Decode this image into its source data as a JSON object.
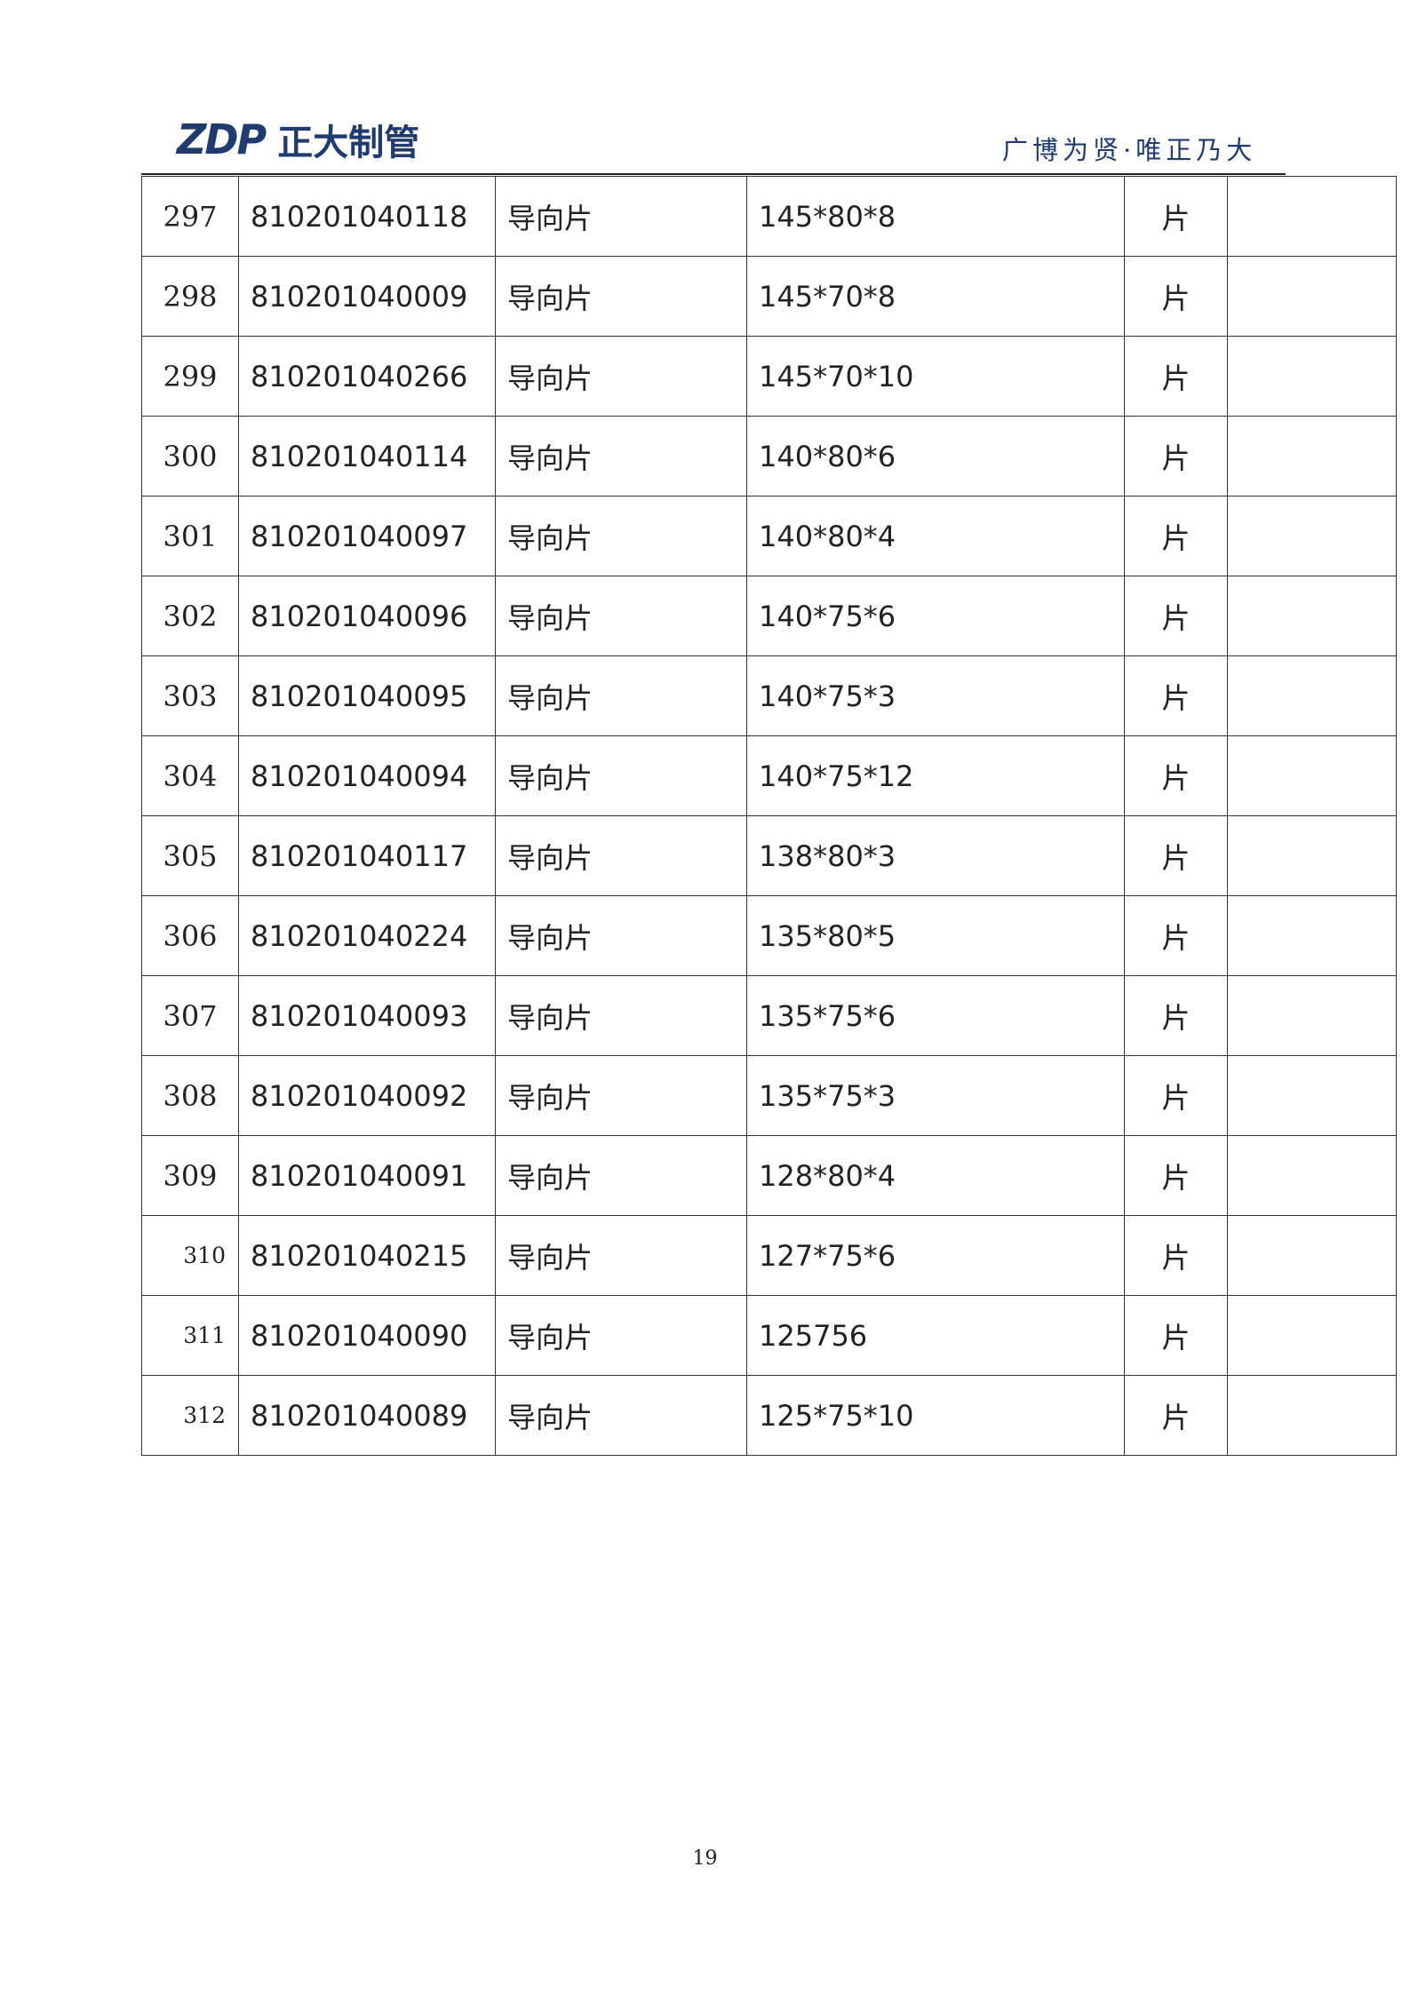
{
  "header": {
    "logo_mark": "ZDP",
    "logo_text": "正大制管",
    "slogan": "广博为贤·唯正乃大"
  },
  "table": {
    "rows": [
      [
        "297",
        "810201040118",
        "导向片",
        "145*80*8",
        "片"
      ],
      [
        "298",
        "810201040009",
        "导向片",
        "145*70*8",
        "片"
      ],
      [
        "299",
        "810201040266",
        "导向片",
        "145*70*10",
        "片"
      ],
      [
        "300",
        "810201040114",
        "导向片",
        "140*80*6",
        "片"
      ],
      [
        "301",
        "810201040097",
        "导向片",
        "140*80*4",
        "片"
      ],
      [
        "302",
        "810201040096",
        "导向片",
        "140*75*6",
        "片"
      ],
      [
        "303",
        "810201040095",
        "导向片",
        "140*75*3",
        "片"
      ],
      [
        "304",
        "810201040094",
        "导向片",
        "140*75*12",
        "片"
      ],
      [
        "305",
        "810201040117",
        "导向片",
        "138*80*3",
        "片"
      ],
      [
        "306",
        "810201040224",
        "导向片",
        "135*80*5",
        "片"
      ],
      [
        "307",
        "810201040093",
        "导向片",
        "135*75*6",
        "片"
      ],
      [
        "308",
        "810201040092",
        "导向片",
        "135*75*3",
        "片"
      ],
      [
        "309",
        "810201040091",
        "导向片",
        "128*80*4",
        "片"
      ],
      [
        "310",
        "810201040215",
        "导向片",
        "127*75*6",
        "片"
      ],
      [
        "311",
        "810201040090",
        "导向片",
        "125756",
        "片"
      ],
      [
        "312",
        "810201040089",
        "导向片",
        "125*75*10",
        "片"
      ]
    ]
  },
  "footer": {
    "page_number": "19"
  }
}
